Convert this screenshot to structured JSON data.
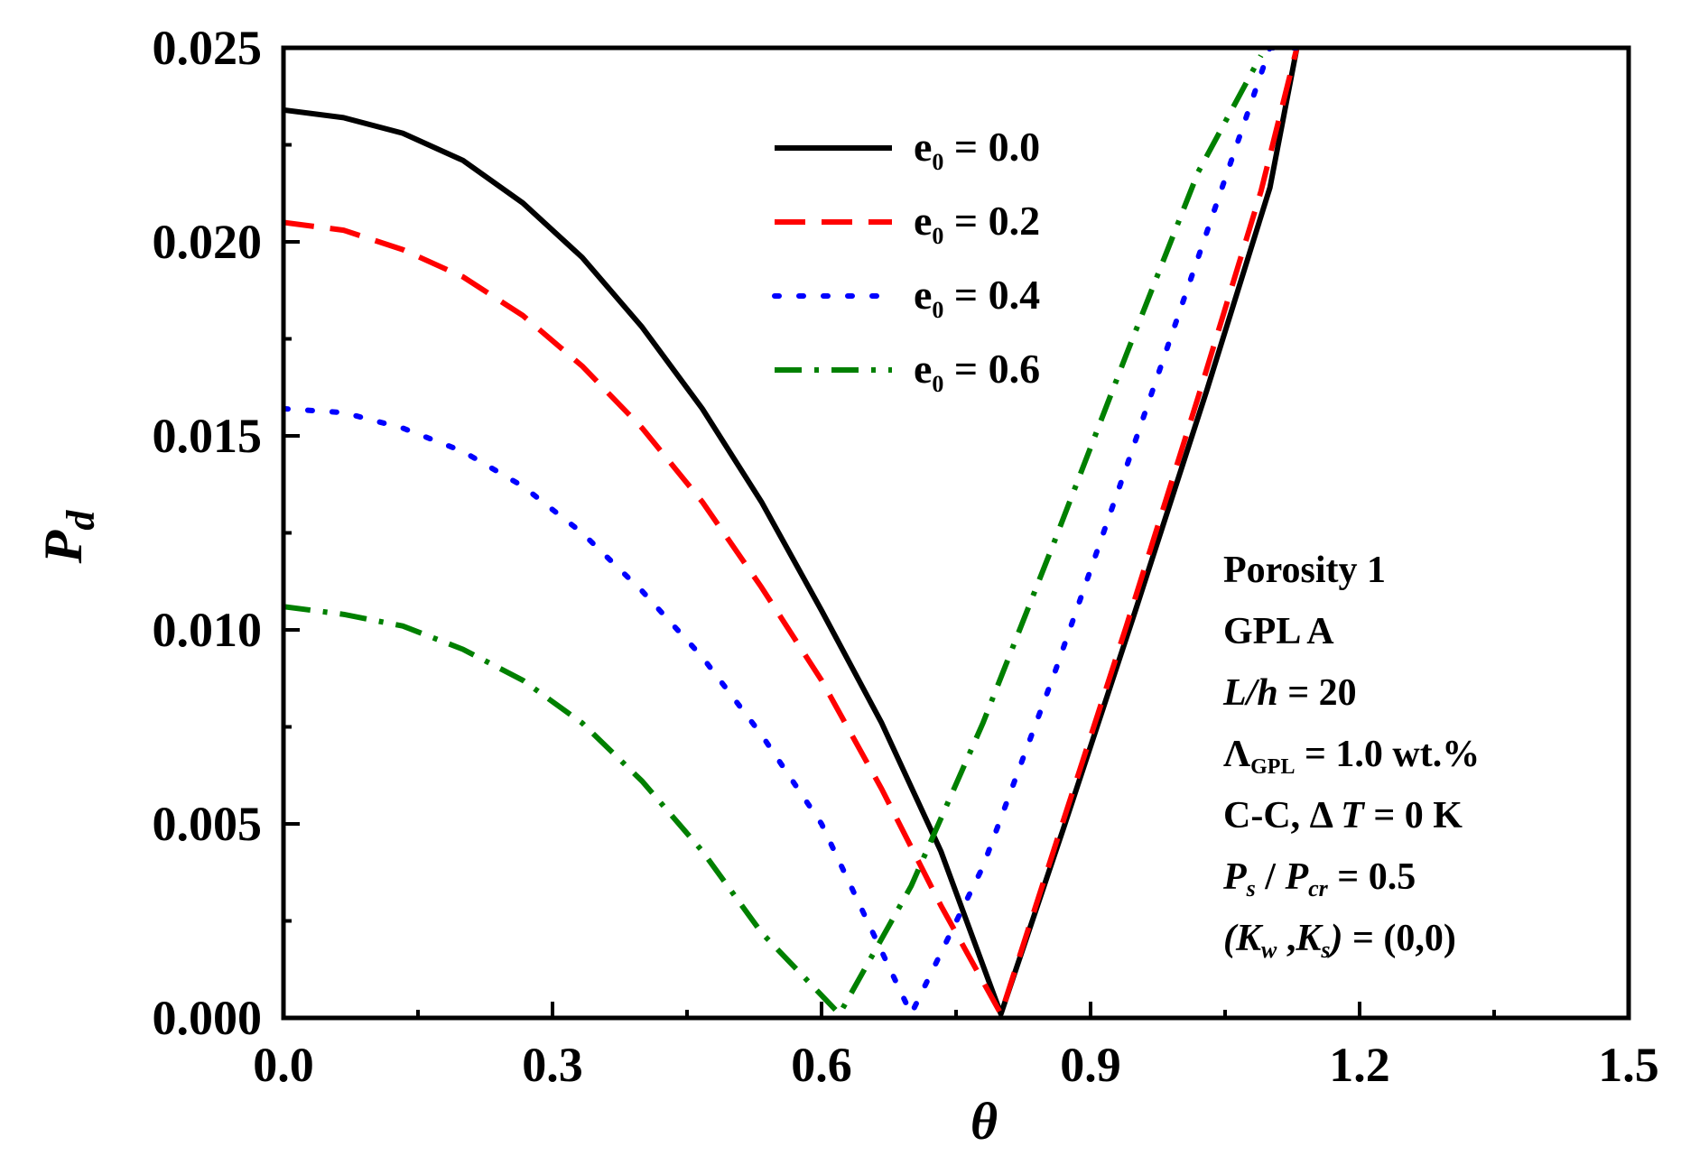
{
  "chart_data": {
    "type": "line",
    "xlabel": "θ",
    "ylabel_main": "P",
    "ylabel_sub": "d",
    "xlim": [
      0.0,
      1.5
    ],
    "ylim": [
      0.0,
      0.025
    ],
    "grid": false,
    "legend_position": "top-center",
    "x_ticks": [
      {
        "value": 0.0,
        "label": "0.0"
      },
      {
        "value": 0.3,
        "label": "0.3"
      },
      {
        "value": 0.6,
        "label": "0.6"
      },
      {
        "value": 0.9,
        "label": "0.9"
      },
      {
        "value": 1.2,
        "label": "1.2"
      },
      {
        "value": 1.5,
        "label": "1.5"
      }
    ],
    "y_ticks": [
      {
        "value": 0.0,
        "label": "0.000"
      },
      {
        "value": 0.005,
        "label": "0.005"
      },
      {
        "value": 0.01,
        "label": "0.010"
      },
      {
        "value": 0.015,
        "label": "0.015"
      },
      {
        "value": 0.02,
        "label": "0.020"
      },
      {
        "value": 0.025,
        "label": "0.025"
      }
    ],
    "series": [
      {
        "name": "e0 = 0.0",
        "legend_main": "e",
        "legend_sub": "0",
        "legend_value": " = 0.0",
        "color": "#000000",
        "style": "solid",
        "x": [
          0.0,
          0.067,
          0.133,
          0.2,
          0.267,
          0.333,
          0.4,
          0.467,
          0.533,
          0.6,
          0.667,
          0.733,
          0.8,
          0.87,
          0.95,
          1.03,
          1.1,
          1.13
        ],
        "y": [
          0.0234,
          0.0232,
          0.0228,
          0.0221,
          0.021,
          0.0196,
          0.0178,
          0.0157,
          0.0133,
          0.0105,
          0.0076,
          0.0043,
          0.0001,
          0.0049,
          0.0105,
          0.0162,
          0.0214,
          0.025
        ]
      },
      {
        "name": "e0 = 0.2",
        "legend_main": "e",
        "legend_sub": "0",
        "legend_value": " = 0.2",
        "color": "#ff0000",
        "style": "dashed",
        "x": [
          0.0,
          0.067,
          0.133,
          0.2,
          0.267,
          0.333,
          0.4,
          0.467,
          0.533,
          0.6,
          0.667,
          0.733,
          0.8,
          0.86,
          0.94,
          1.02,
          1.09,
          1.13
        ],
        "y": [
          0.0205,
          0.0203,
          0.0198,
          0.0191,
          0.0181,
          0.0168,
          0.0152,
          0.0133,
          0.0111,
          0.0087,
          0.0059,
          0.0029,
          0.0001,
          0.0044,
          0.0101,
          0.016,
          0.0213,
          0.025
        ]
      },
      {
        "name": "e0 = 0.4",
        "legend_main": "e",
        "legend_sub": "0",
        "legend_value": " = 0.4",
        "color": "#0000ff",
        "style": "dotted",
        "x": [
          0.0,
          0.067,
          0.133,
          0.2,
          0.267,
          0.333,
          0.4,
          0.467,
          0.533,
          0.6,
          0.7,
          0.78,
          0.86,
          0.94,
          1.02,
          1.1,
          1.13
        ],
        "y": [
          0.0157,
          0.0156,
          0.0152,
          0.0146,
          0.0137,
          0.0125,
          0.011,
          0.0093,
          0.0073,
          0.005,
          0.0001,
          0.0039,
          0.0089,
          0.0142,
          0.0196,
          0.025,
          0.025
        ]
      },
      {
        "name": "e0 = 0.6",
        "legend_main": "e",
        "legend_sub": "0",
        "legend_value": " = 0.6",
        "color": "#008000",
        "style": "dashdot",
        "x": [
          0.0,
          0.067,
          0.133,
          0.2,
          0.267,
          0.333,
          0.4,
          0.467,
          0.533,
          0.62,
          0.7,
          0.78,
          0.86,
          0.94,
          1.02,
          1.09
        ],
        "y": [
          0.0106,
          0.0104,
          0.0101,
          0.0095,
          0.0087,
          0.0076,
          0.0061,
          0.0043,
          0.0022,
          0.0001,
          0.0034,
          0.0076,
          0.0123,
          0.0171,
          0.0218,
          0.0248
        ]
      }
    ],
    "annotations": {
      "porosity": "Porosity 1",
      "gpl": "GPL A",
      "lh_label": "L/h",
      "lh_value": " = 20",
      "lambda_symbol": "Λ",
      "lambda_sub": "GPL",
      "lambda_value": " = 1.0 wt.%",
      "bc_label": "C-C,  Δ ",
      "t_symbol": "T",
      "t_value": " = 0 K",
      "ps_symbol": "P",
      "ps_sub": "s",
      "slash": " / ",
      "pcr_symbol": "P",
      "pcr_sub": "cr",
      "ratio_value": " = 0.5",
      "k_open": "(",
      "kw_symbol": "K",
      "kw_sub": "w",
      "comma": " ,",
      "ks_symbol": "K",
      "ks_sub": "s",
      "k_close": ")",
      "k_value": " = (0,0)"
    }
  }
}
